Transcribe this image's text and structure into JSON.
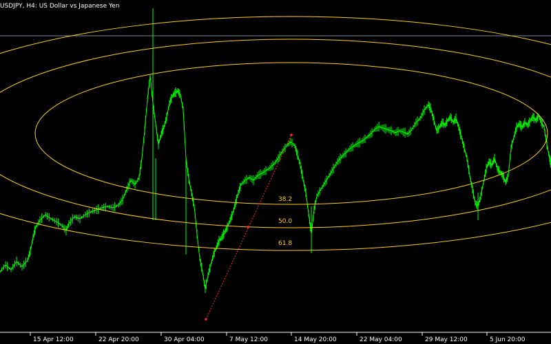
{
  "header": {
    "title": "USDJPY, H4:  US Dollar vs Japanese Yen"
  },
  "xaxis": {
    "labels": [
      "15 Apr 12:00",
      "22 Apr 20:00",
      "30 Apr 04:00",
      "7 May 12:00",
      "14 May 20:00",
      "22 May 04:00",
      "29 May 12:00",
      "5 Jun 20:00"
    ]
  },
  "fibonacci": {
    "levels": [
      "38.2",
      "50.0",
      "61.8"
    ]
  },
  "colors": {
    "background": "#000000",
    "candles": "#00ff00",
    "fib_ellipses": "#ffd21e",
    "trendline": "#ff2a2a",
    "price_line": "#7a8a99"
  },
  "chart_data": {
    "type": "candlestick",
    "title": "USDJPY, H4:  US Dollar vs Japanese Yen",
    "x_tick_labels": [
      "15 Apr 12:00",
      "22 Apr 20:00",
      "30 Apr 04:00",
      "7 May 12:00",
      "14 May 20:00",
      "22 May 04:00",
      "29 May 12:00",
      "5 Jun 20:00"
    ],
    "fib_ellipse_levels": [
      "38.2",
      "50.0",
      "61.8"
    ],
    "grid": false
  }
}
